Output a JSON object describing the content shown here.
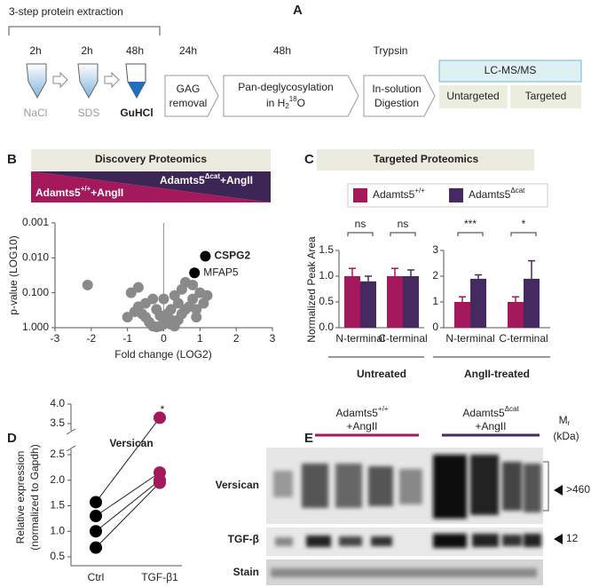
{
  "panels": [
    "A",
    "B",
    "C",
    "D",
    "E"
  ],
  "workflow": {
    "extraction_title": "3-step protein extraction",
    "tubes": [
      {
        "time": "2h",
        "label": "NaCl"
      },
      {
        "time": "2h",
        "label": "SDS"
      },
      {
        "time": "48h",
        "label": "GuHCl"
      }
    ],
    "steps": [
      {
        "time": "24h",
        "lines": [
          "GAG",
          "removal"
        ]
      },
      {
        "time": "48h",
        "line1": "Pan-deglycosylation",
        "line2": "in H",
        "sub": "2",
        "sup": "18",
        "end": "O"
      },
      {
        "time": "Trypsin",
        "lines": [
          "In-solution",
          "Digestion"
        ]
      }
    ],
    "ms": {
      "title": "LC-MS/MS",
      "modes": [
        "Untargeted",
        "Targeted"
      ]
    }
  },
  "chart_data": [
    {
      "type": "scatter",
      "header": "Discovery Proteomics",
      "groups": [
        {
          "base": "Adamts5",
          "sup": "+/+",
          "suffix": "+AngII",
          "color": "#a3195b"
        },
        {
          "base": "Adamts5",
          "sup": "Δcat",
          "suffix": "+AngII",
          "color": "#3d2556"
        }
      ],
      "xlabel": "Fold change (LOG2)",
      "ylabel": "p-value (LOG10)",
      "color": "#8a8a8a",
      "x": [
        -2.1,
        -0.9,
        -0.7,
        -0.5,
        -0.3,
        -0.2,
        0.0,
        0.1,
        0.3,
        0.5,
        0.6,
        0.8,
        1.0,
        1.2,
        1.1,
        0.9,
        0.4,
        0.2,
        -0.1,
        -0.4,
        -0.6,
        -0.8,
        -1.0,
        -0.3,
        0.0,
        0.2,
        0.5,
        0.7,
        -0.5,
        -0.2,
        0.1,
        0.3,
        0.6,
        -0.7,
        0.8,
        0.4,
        -0.1,
        0.9,
        0.2,
        0.0
      ],
      "y": [
        0.06,
        0.1,
        0.07,
        0.2,
        0.15,
        0.3,
        0.5,
        0.4,
        0.12,
        0.08,
        0.05,
        0.06,
        0.1,
        0.12,
        0.2,
        0.3,
        0.6,
        0.8,
        0.9,
        0.7,
        0.4,
        0.35,
        0.5,
        0.9,
        0.8,
        0.6,
        0.4,
        0.25,
        0.5,
        0.95,
        0.7,
        0.9,
        0.3,
        0.25,
        0.15,
        0.2,
        0.45,
        0.5,
        0.3,
        0.15
      ],
      "highlighted": [
        {
          "label": "CSPG2",
          "x": 1.15,
          "y": 0.009,
          "bold": true,
          "color": "#000000"
        },
        {
          "label": "MFAP5",
          "x": 0.85,
          "y": 0.027,
          "bold": false,
          "color": "#000000"
        }
      ],
      "xlim": [
        -3,
        3
      ],
      "xticks": [
        -3,
        -2,
        -1,
        0,
        1,
        2,
        3
      ],
      "log_y": true,
      "ylim": [
        1,
        0.001
      ],
      "yticks": [
        {
          "value": 1,
          "label": "1.000"
        },
        {
          "value": 0.1,
          "label": "0.100"
        },
        {
          "value": 0.01,
          "label": "0.010"
        },
        0.001
      ]
    },
    {
      "type": "grouped_bar",
      "header": "Targeted Proteomics",
      "ylabel": "Normalized Peak Area",
      "series": [
        {
          "name": "Adamts5",
          "sup": "+/+",
          "color": "#a3195b"
        },
        {
          "name": "Adamts5",
          "sup": "Δcat",
          "color": "#452a60"
        }
      ],
      "subplots": [
        {
          "group_label": "Untreated",
          "categories": [
            "N-terminal",
            "C-terminal"
          ],
          "values": [
            [
              1.0,
              1.0
            ],
            [
              0.9,
              1.0
            ]
          ],
          "errors": [
            [
              0.15,
              0.15
            ],
            [
              0.1,
              0.12
            ]
          ],
          "annotations": [
            "ns",
            "ns"
          ],
          "ylim": [
            0,
            1.5
          ],
          "yticks": [
            {
              "value": 0,
              "label": "0.0"
            },
            0.5,
            {
              "value": 1,
              "label": "1.0"
            },
            1.5
          ]
        },
        {
          "group_label": "AngII-treated",
          "categories": [
            "N-terminal",
            "C-terminal"
          ],
          "values": [
            [
              1.0,
              1.0
            ],
            [
              1.9,
              1.9
            ]
          ],
          "errors": [
            [
              0.2,
              0.2
            ],
            [
              0.15,
              0.7
            ]
          ],
          "annotations": [
            "***",
            "*"
          ],
          "ylim": [
            0,
            3
          ],
          "yticks": [
            0,
            1,
            2,
            3
          ]
        }
      ]
    },
    {
      "type": "paired",
      "title": "Versican",
      "ylabel": [
        "Relative expression",
        "(normalized to Gapdh)"
      ],
      "categories": [
        "Ctrl",
        "TGF-β1"
      ],
      "colors": [
        "#000000",
        "#a3195b"
      ],
      "pairs": [
        [
          0.68,
          1.95
        ],
        [
          1.0,
          2.0
        ],
        [
          1.3,
          2.15
        ],
        [
          1.57,
          3.65
        ]
      ],
      "annotation": "*",
      "ylim": [
        0.5,
        4.0
      ],
      "axis_break": [
        2.5,
        3.5
      ],
      "yticks": [
        0.5,
        {
          "value": 1,
          "label": "1.0"
        },
        1.5,
        {
          "value": 2,
          "label": "2.0"
        },
        2.5,
        3.5,
        {
          "value": 4,
          "label": "4.0"
        }
      ]
    }
  ],
  "blot": {
    "groups": [
      {
        "base": "Adamts5",
        "sup": "+/+",
        "line2": "+AngII",
        "color": "#a3195b"
      },
      {
        "base": "Adamts5",
        "sup": "Δcat",
        "line2": "+AngII",
        "color": "#452a60"
      }
    ],
    "mr": {
      "base": "M",
      "sub": "r",
      "unit": "(kDa)"
    },
    "rows": [
      {
        "label": "Versican",
        "size": ">460"
      },
      {
        "label": "TGF-β",
        "size": "12"
      },
      {
        "label": "Stain"
      }
    ]
  }
}
